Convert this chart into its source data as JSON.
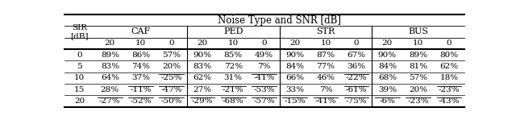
{
  "title": "Noise Type and SNR [dB]",
  "col_header_groups": [
    "CAF",
    "PED",
    "STR",
    "BUS"
  ],
  "col_sub_headers": [
    "20",
    "10",
    "0"
  ],
  "row_header_title": "SIR\n[dB]",
  "row_labels": [
    "0",
    "5",
    "10",
    "15",
    "20"
  ],
  "data": [
    [
      "89%",
      "86%",
      "57%",
      "90%",
      "85%",
      "49%",
      "90%",
      "87%",
      "67%",
      "90%",
      "89%",
      "80%"
    ],
    [
      "83%",
      "74%",
      "20%",
      "83%",
      "72%",
      "7%",
      "84%",
      "77%",
      "36%",
      "84%",
      "81%",
      "62%"
    ],
    [
      "64%",
      "37%",
      "-25%",
      "62%",
      "31%",
      "-41%",
      "66%",
      "46%",
      "-22%",
      "68%",
      "57%",
      "18%"
    ],
    [
      "28%",
      "-11%",
      "-47%",
      "27%",
      "-21%",
      "-53%",
      "33%",
      "7%",
      "-61%",
      "39%",
      "20%",
      "-23%"
    ],
    [
      "-27%",
      "-52%",
      "-50%",
      "-29%",
      "-68%",
      "-57%",
      "-15%",
      "-41%",
      "-75%",
      "-6%",
      "-23%",
      "-43%"
    ]
  ],
  "negative_cells": [
    [
      false,
      false,
      false,
      false,
      false,
      false,
      false,
      false,
      false,
      false,
      false,
      false
    ],
    [
      false,
      false,
      false,
      false,
      false,
      false,
      false,
      false,
      false,
      false,
      false,
      false
    ],
    [
      false,
      false,
      true,
      false,
      false,
      true,
      false,
      false,
      true,
      false,
      false,
      false
    ],
    [
      false,
      true,
      true,
      false,
      true,
      true,
      false,
      false,
      true,
      false,
      false,
      true
    ],
    [
      true,
      true,
      true,
      true,
      true,
      true,
      true,
      true,
      true,
      true,
      true,
      true
    ]
  ]
}
